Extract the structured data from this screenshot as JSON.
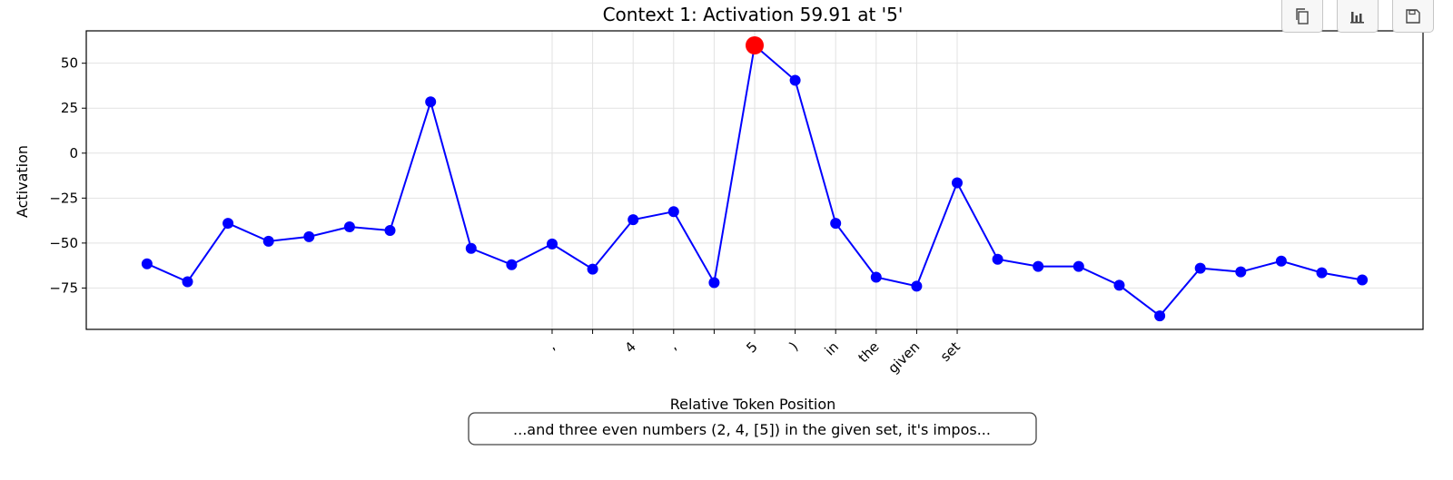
{
  "toolbar": {
    "buttons": [
      {
        "name": "copy-icon"
      },
      {
        "name": "bar-chart-icon"
      },
      {
        "name": "save-icon"
      }
    ]
  },
  "chart_data": {
    "type": "line",
    "title": "Context 1: Activation 59.91 at '5'",
    "xlabel": "Relative Token Position",
    "ylabel": "Activation",
    "ylim": [
      -98,
      68
    ],
    "xlim": [
      -1.5,
      31.5
    ],
    "yticks": [
      50,
      25,
      0,
      -25,
      -50,
      -75
    ],
    "grid": true,
    "x": [
      0,
      1,
      2,
      3,
      4,
      5,
      6,
      7,
      8,
      9,
      10,
      11,
      12,
      13,
      14,
      15,
      16,
      17,
      18,
      19,
      20,
      21,
      22,
      23,
      24,
      25,
      26,
      27,
      28,
      29,
      30
    ],
    "values": [
      -61.5,
      -71.5,
      -39,
      -49,
      -46.5,
      -41,
      -43,
      28.5,
      -53,
      -62,
      -50.5,
      -64.5,
      -37,
      -32.5,
      -72,
      59.91,
      40.5,
      -39,
      -69,
      -74,
      -16.5,
      -59,
      -63,
      -63,
      -73.5,
      -90.5,
      -64,
      -66,
      -60,
      -66.5,
      -70.5
    ],
    "series_color": "#0000ff",
    "highlight": {
      "index": 15,
      "color": "#ff0000"
    },
    "tick_labels": [
      {
        "x": 10,
        "label": ","
      },
      {
        "x": 11,
        "label": " "
      },
      {
        "x": 12,
        "label": "4"
      },
      {
        "x": 13,
        "label": ","
      },
      {
        "x": 14,
        "label": " "
      },
      {
        "x": 15,
        "label": "5"
      },
      {
        "x": 16,
        "label": ")"
      },
      {
        "x": 17,
        "label": "in"
      },
      {
        "x": 18,
        "label": "the"
      },
      {
        "x": 19,
        "label": "given"
      },
      {
        "x": 20,
        "label": "set"
      }
    ],
    "context_text": "...and three even numbers (2, 4, [5]) in the given set, it's impos..."
  }
}
